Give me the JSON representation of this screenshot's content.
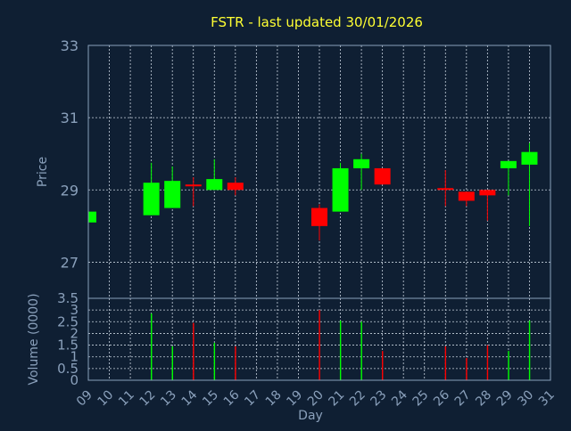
{
  "chart_data": [
    {
      "type": "candlestick",
      "title": "FSTR - last updated 30/01/2026",
      "ylabel": "Price",
      "ylim": [
        26,
        33
      ],
      "yticks": [
        27,
        29,
        31,
        33
      ],
      "grid": true,
      "up_color": "#00ff00",
      "down_color": "#ff0000",
      "candles": [
        {
          "day": "09",
          "open": 28.1,
          "close": 28.4,
          "high": 28.4,
          "low": 28.1
        },
        {
          "day": "12",
          "open": 28.3,
          "close": 29.2,
          "high": 29.75,
          "low": 28.3
        },
        {
          "day": "13",
          "open": 28.5,
          "close": 29.25,
          "high": 29.65,
          "low": 28.5
        },
        {
          "day": "14",
          "open": 29.15,
          "close": 29.1,
          "high": 29.35,
          "low": 28.55
        },
        {
          "day": "15",
          "open": 29.0,
          "close": 29.3,
          "high": 29.85,
          "low": 29.0
        },
        {
          "day": "16",
          "open": 29.2,
          "close": 29.0,
          "high": 29.35,
          "low": 28.85
        },
        {
          "day": "20",
          "open": 28.5,
          "close": 28.0,
          "high": 28.6,
          "low": 27.6
        },
        {
          "day": "21",
          "open": 28.4,
          "close": 29.6,
          "high": 29.75,
          "low": 28.4
        },
        {
          "day": "22",
          "open": 29.6,
          "close": 29.85,
          "high": 30.0,
          "low": 29.0
        },
        {
          "day": "23",
          "open": 29.6,
          "close": 29.15,
          "high": 29.6,
          "low": 29.15
        },
        {
          "day": "26",
          "open": 29.05,
          "close": 29.0,
          "high": 29.55,
          "low": 28.55
        },
        {
          "day": "27",
          "open": 28.95,
          "close": 28.7,
          "high": 28.95,
          "low": 28.55
        },
        {
          "day": "28",
          "open": 29.0,
          "close": 28.85,
          "high": 29.0,
          "low": 28.15
        },
        {
          "day": "29",
          "open": 29.6,
          "close": 29.8,
          "high": 29.8,
          "low": 28.85
        },
        {
          "day": "30",
          "open": 29.7,
          "close": 30.05,
          "high": 30.3,
          "low": 28.0
        }
      ]
    },
    {
      "type": "bar",
      "xlabel": "Day",
      "ylabel": "Volume (0000)",
      "ylim": [
        0,
        3.5
      ],
      "yticks": [
        0,
        0.5,
        1,
        1.5,
        2,
        2.5,
        3,
        3.5
      ],
      "categories": [
        "09",
        "10",
        "11",
        "12",
        "13",
        "14",
        "15",
        "16",
        "17",
        "18",
        "19",
        "20",
        "21",
        "22",
        "23",
        "24",
        "25",
        "26",
        "27",
        "28",
        "29",
        "30",
        "31"
      ],
      "bars": [
        {
          "day": "12",
          "value": 2.85,
          "color": "#00ff00"
        },
        {
          "day": "13",
          "value": 1.45,
          "color": "#00ff00"
        },
        {
          "day": "14",
          "value": 2.45,
          "color": "#ff0000"
        },
        {
          "day": "15",
          "value": 1.6,
          "color": "#00ff00"
        },
        {
          "day": "16",
          "value": 1.45,
          "color": "#ff0000"
        },
        {
          "day": "20",
          "value": 3.0,
          "color": "#ff0000"
        },
        {
          "day": "21",
          "value": 2.55,
          "color": "#00ff00"
        },
        {
          "day": "22",
          "value": 2.5,
          "color": "#00ff00"
        },
        {
          "day": "23",
          "value": 1.25,
          "color": "#ff0000"
        },
        {
          "day": "26",
          "value": 1.45,
          "color": "#ff0000"
        },
        {
          "day": "27",
          "value": 0.95,
          "color": "#ff0000"
        },
        {
          "day": "28",
          "value": 1.5,
          "color": "#ff0000"
        },
        {
          "day": "29",
          "value": 1.25,
          "color": "#00ff00"
        },
        {
          "day": "30",
          "value": 2.55,
          "color": "#00ff00"
        }
      ]
    }
  ]
}
